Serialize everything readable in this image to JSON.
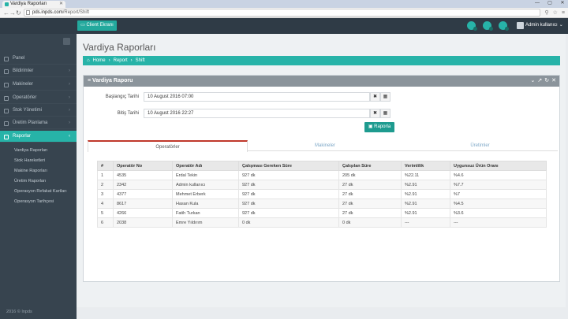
{
  "browser": {
    "tab_title": "Vardiya Raporları",
    "url_host": "pds.inpds.com",
    "url_path": "/Report/Shift"
  },
  "topbar": {
    "client_button": "Client Ekranı",
    "user_label": "Admin kullanıcı"
  },
  "sidebar": {
    "items": [
      {
        "label": "Panel",
        "icon": "home-icon"
      },
      {
        "label": "Bildirimler",
        "icon": "bell-icon"
      },
      {
        "label": "Makineler",
        "icon": "machine-icon"
      },
      {
        "label": "Operatörler",
        "icon": "users-icon"
      },
      {
        "label": "Stok Yönetimi",
        "icon": "box-icon"
      },
      {
        "label": "Üretim Planlama",
        "icon": "calendar-icon"
      },
      {
        "label": "Raporlar",
        "icon": "chart-icon"
      }
    ],
    "subitems": [
      "Vardiya Raporları",
      "Stok Hareketleri",
      "Makine Raporları",
      "Üretim Raporları",
      "Operasyon Refakat Kartları",
      "Operasyon Tarihçesi"
    ],
    "footer": "2016 © Inpds"
  },
  "main": {
    "title": "Vardiya Raporları",
    "breadcrumb": [
      "Home",
      "Report",
      "Shift"
    ],
    "panel_title": "Vardiya Raporu",
    "start_label": "Başlangıç Tarihi",
    "start_value": "10 August 2016 07:00",
    "end_label": "Bitiş Tarihi",
    "end_value": "10 August 2016 22:27",
    "report_button": "Raporla",
    "tabs": [
      "Operatörler",
      "Makineler",
      "Üretimler"
    ],
    "table": {
      "headers": [
        "#",
        "Operatör No",
        "Operatör Adı",
        "Çalışması Gereken Süre",
        "Çalışılan Süre",
        "Verimlilik",
        "Uygunsuz Ürün Oranı"
      ],
      "rows": [
        [
          "1",
          "4535",
          "Erdal Tekin",
          "927 dk",
          "205 dk",
          "%22.11",
          "%4.6"
        ],
        [
          "2",
          "2342",
          "Admin kullanıcı",
          "927 dk",
          "27 dk",
          "%2.91",
          "%7.7"
        ],
        [
          "3",
          "4377",
          "Mehmet Erberk",
          "927 dk",
          "27 dk",
          "%2.91",
          "%7"
        ],
        [
          "4",
          "8617",
          "Hasan Kula",
          "927 dk",
          "27 dk",
          "%2.91",
          "%4.5"
        ],
        [
          "5",
          "4266",
          "Fatih Turkan",
          "927 dk",
          "27 dk",
          "%2.91",
          "%3.6"
        ],
        [
          "6",
          "2038",
          "Emre Yıldırım",
          "0 dk",
          "0 dk",
          "---",
          "---"
        ]
      ]
    }
  }
}
